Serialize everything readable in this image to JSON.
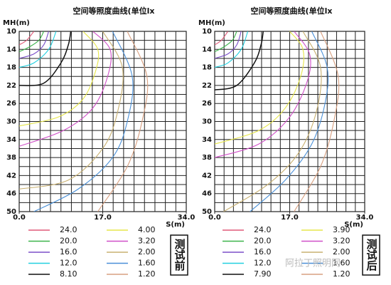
{
  "chart_data": [
    {
      "type": "line",
      "title": "空间等照度曲线(单位lx",
      "x_label": "S(m)",
      "y_label": "MH(m)",
      "stamp": "测试前",
      "xlim": [
        0,
        34
      ],
      "ylim": [
        50,
        10
      ],
      "xticks": [
        {
          "value": 0,
          "label": "0.0"
        },
        {
          "value": 17,
          "label": "17.0"
        },
        {
          "value": 34,
          "label": "34.0"
        }
      ],
      "yticks": [
        10,
        14,
        18,
        22,
        26,
        30,
        34,
        38,
        42,
        46,
        50
      ],
      "grid": true,
      "series": [
        {
          "name": "24.0",
          "color": "#e05a78",
          "x": [
            0,
            1.5,
            3
          ],
          "values": [
            13,
            12,
            10
          ]
        },
        {
          "name": "20.0",
          "color": "#3cb44b",
          "x": [
            0,
            2,
            4,
            5
          ],
          "values": [
            14.5,
            13.5,
            12,
            10
          ]
        },
        {
          "name": "16.0",
          "color": "#7b4fc9",
          "x": [
            0,
            3,
            5,
            6
          ],
          "values": [
            16,
            15,
            13,
            10
          ]
        },
        {
          "name": "12.0",
          "color": "#22d0e0",
          "x": [
            0,
            3,
            6,
            7.5
          ],
          "values": [
            18,
            17,
            14,
            10
          ]
        },
        {
          "name": "8.10",
          "color": "#111111",
          "x": [
            0,
            5,
            8.5,
            10,
            10.5
          ],
          "values": [
            22,
            21.5,
            17,
            13,
            10
          ]
        },
        {
          "name": "4.00",
          "color": "#e6e64a",
          "x": [
            0,
            8,
            13,
            15.5,
            16,
            13
          ],
          "values": [
            31,
            29,
            25,
            19,
            14,
            10
          ]
        },
        {
          "name": "3.20",
          "color": "#d050c8",
          "x": [
            0,
            9,
            15,
            18,
            18.5,
            15
          ],
          "values": [
            35.5,
            32,
            27,
            20,
            14,
            10
          ]
        },
        {
          "name": "2.00",
          "color": "#c8b070",
          "x": [
            0,
            10,
            17,
            20,
            21,
            17
          ],
          "values": [
            45,
            43,
            36,
            28,
            18,
            10
          ]
        },
        {
          "name": "1.60",
          "color": "#4a90d8",
          "x": [
            3,
            12,
            19,
            22,
            23,
            19
          ],
          "values": [
            50,
            45,
            38,
            30,
            20,
            10
          ]
        },
        {
          "name": "1.20",
          "color": "#d8a080",
          "x": [
            16,
            22,
            25,
            26,
            22
          ],
          "values": [
            50,
            40,
            30,
            20,
            10
          ]
        }
      ]
    },
    {
      "type": "line",
      "title": "空间等照度曲线(单位lx",
      "x_label": "S(m)",
      "y_label": "MH(m)",
      "stamp": "测试后",
      "annotation": "阿拉丁照明网",
      "xlim": [
        0,
        34
      ],
      "ylim": [
        50,
        10
      ],
      "xticks": [
        {
          "value": 0,
          "label": "0.0"
        },
        {
          "value": 17,
          "label": "17.0"
        },
        {
          "value": 34,
          "label": "34.0"
        }
      ],
      "yticks": [
        10,
        14,
        18,
        22,
        26,
        30,
        34,
        38,
        42,
        46,
        50
      ],
      "grid": true,
      "series": [
        {
          "name": "24.0",
          "color": "#e05a78",
          "x": [
            0,
            1.5,
            3
          ],
          "values": [
            13,
            12,
            10
          ]
        },
        {
          "name": "20.0",
          "color": "#3cb44b",
          "x": [
            0,
            2,
            4,
            5
          ],
          "values": [
            14.5,
            13.5,
            12,
            10
          ]
        },
        {
          "name": "16.0",
          "color": "#7b4fc9",
          "x": [
            0,
            3,
            5,
            6
          ],
          "values": [
            16,
            15,
            13,
            10
          ]
        },
        {
          "name": "12.0",
          "color": "#22d0e0",
          "x": [
            0,
            3,
            6,
            7.5
          ],
          "values": [
            18,
            17,
            14,
            10
          ]
        },
        {
          "name": "7.90",
          "color": "#111111",
          "x": [
            0,
            5,
            9,
            10.5,
            11
          ],
          "values": [
            23,
            22,
            17,
            13,
            10
          ]
        },
        {
          "name": "3.90",
          "color": "#e6e64a",
          "x": [
            0,
            10,
            16,
            19.5,
            20,
            17
          ],
          "values": [
            35,
            32,
            27,
            20,
            14,
            10
          ]
        },
        {
          "name": "3.20",
          "color": "#d050c8",
          "x": [
            0,
            10,
            17,
            21,
            21.5,
            18
          ],
          "values": [
            38,
            35,
            29,
            21,
            15,
            10
          ]
        },
        {
          "name": "2.00",
          "color": "#c8b070",
          "x": [
            2,
            12,
            19,
            23,
            24,
            20
          ],
          "values": [
            50,
            44,
            37,
            28,
            18,
            10
          ]
        },
        {
          "name": "1.60",
          "color": "#4a90d8",
          "x": [
            8,
            16,
            22,
            25,
            25.5,
            22
          ],
          "values": [
            50,
            43,
            35,
            26,
            18,
            10
          ]
        },
        {
          "name": "1.20",
          "color": "#d8a080",
          "x": [
            18,
            24,
            27,
            28,
            24
          ],
          "values": [
            50,
            40,
            30,
            20,
            10
          ]
        }
      ]
    }
  ]
}
